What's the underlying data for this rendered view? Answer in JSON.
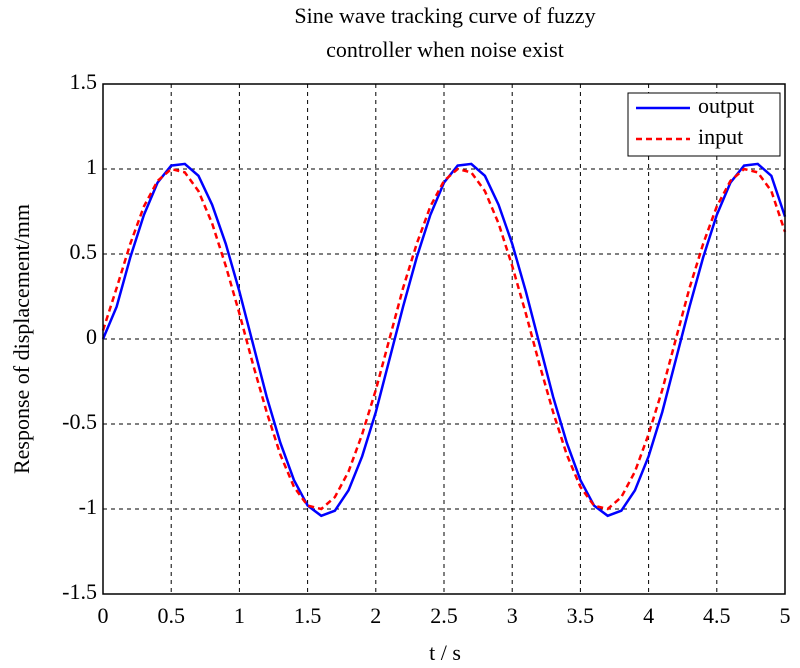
{
  "chart_data": {
    "type": "line",
    "title": [
      "Sine wave tracking curve of fuzzy",
      "controller when noise exist"
    ],
    "xlabel": "t / s",
    "ylabel": "Response of displacement/mm",
    "x": [
      0,
      0.1,
      0.2,
      0.3,
      0.4,
      0.5,
      0.6,
      0.7,
      0.8,
      0.9,
      1.0,
      1.1,
      1.2,
      1.3,
      1.4,
      1.5,
      1.6,
      1.7,
      1.8,
      1.9,
      2.0,
      2.1,
      2.2,
      2.3,
      2.4,
      2.5,
      2.6,
      2.7,
      2.8,
      2.9,
      3.0,
      3.1,
      3.2,
      3.3,
      3.4,
      3.5,
      3.6,
      3.7,
      3.8,
      3.9,
      4.0,
      4.1,
      4.2,
      4.3,
      4.4,
      4.5,
      4.6,
      4.7,
      4.8,
      4.9,
      5.0
    ],
    "series": [
      {
        "name": "output",
        "color": "#0000ff",
        "dash": "solid",
        "values": [
          0,
          0.19,
          0.48,
          0.73,
          0.92,
          1.02,
          1.03,
          0.96,
          0.79,
          0.56,
          0.28,
          -0.03,
          -0.34,
          -0.61,
          -0.83,
          -0.98,
          -1.04,
          -1.01,
          -0.89,
          -0.69,
          -0.43,
          -0.12,
          0.19,
          0.48,
          0.73,
          0.92,
          1.02,
          1.03,
          0.96,
          0.79,
          0.56,
          0.28,
          -0.03,
          -0.34,
          -0.61,
          -0.83,
          -0.98,
          -1.04,
          -1.01,
          -0.89,
          -0.69,
          -0.43,
          -0.12,
          0.19,
          0.48,
          0.73,
          0.92,
          1.02,
          1.03,
          0.96,
          0.72
        ]
      },
      {
        "name": "input",
        "color": "#ff0000",
        "dash": "dashed",
        "values": [
          0.05,
          0.3,
          0.56,
          0.78,
          0.93,
          1.0,
          0.98,
          0.87,
          0.68,
          0.43,
          0.15,
          -0.15,
          -0.43,
          -0.68,
          -0.87,
          -0.98,
          -1.0,
          -0.93,
          -0.78,
          -0.56,
          -0.3,
          0,
          0.3,
          0.56,
          0.78,
          0.93,
          1.0,
          0.98,
          0.87,
          0.68,
          0.43,
          0.15,
          -0.15,
          -0.43,
          -0.68,
          -0.87,
          -0.98,
          -1.0,
          -0.93,
          -0.78,
          -0.56,
          -0.3,
          0,
          0.3,
          0.56,
          0.78,
          0.93,
          1.0,
          0.98,
          0.87,
          0.63
        ]
      }
    ],
    "xlim": [
      0,
      5
    ],
    "xticks": [
      0,
      0.5,
      1,
      1.5,
      2,
      2.5,
      3,
      3.5,
      4,
      4.5,
      5
    ],
    "ylim": [
      -1.5,
      1.5
    ],
    "yticks": [
      -1.5,
      -1,
      -0.5,
      0,
      0.5,
      1,
      1.5
    ],
    "grid": true,
    "legend": "upper right"
  }
}
